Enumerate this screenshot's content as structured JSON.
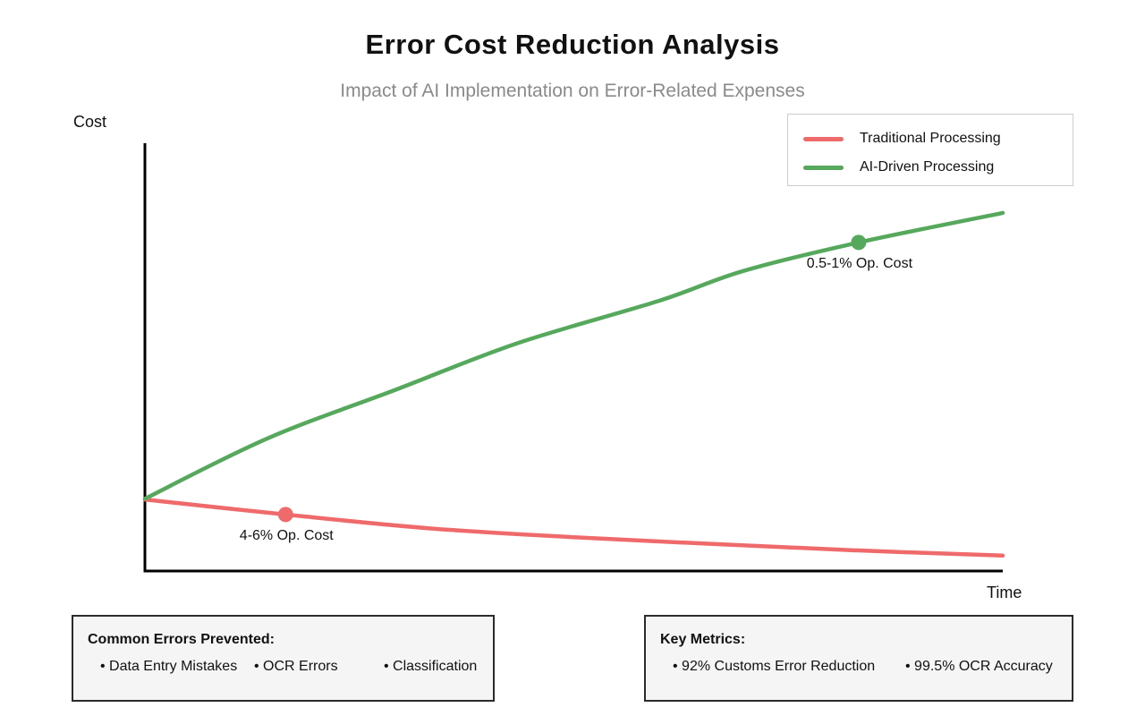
{
  "title": "Error Cost Reduction Analysis",
  "subtitle": "Impact of AI Implementation on Error-Related Expenses",
  "axes": {
    "y_label": "Cost",
    "x_label": "Time"
  },
  "legend": {
    "items": [
      {
        "label": "Traditional Processing",
        "color": "#ef6a6a"
      },
      {
        "label": "AI-Driven Processing",
        "color": "#56a85c"
      }
    ]
  },
  "chart_data": {
    "type": "line",
    "title": "Error Cost Reduction Analysis",
    "subtitle": "Impact of AI Implementation on Error-Related Expenses",
    "xlabel": "Time",
    "ylabel": "Cost",
    "grid": false,
    "axis_ticks": false,
    "legend_position": "top-right",
    "x_range_normalized": [
      0,
      1
    ],
    "y_range_normalized": [
      0,
      1
    ],
    "series": [
      {
        "name": "Traditional Processing",
        "color": "#ef6a6a",
        "points": [
          [
            0,
            0.167
          ],
          [
            0.164,
            0.132
          ],
          [
            0.33,
            0.1
          ],
          [
            0.5,
            0.079
          ],
          [
            0.665,
            0.063
          ],
          [
            0.832,
            0.048
          ],
          [
            1,
            0.036
          ]
        ],
        "marker": {
          "x": 0.164,
          "y": 0.132,
          "label": "4-6% Op. Cost"
        }
      },
      {
        "name": "AI-Driven Processing",
        "color": "#56a85c",
        "points": [
          [
            0,
            0.169
          ],
          [
            0.143,
            0.31
          ],
          [
            0.294,
            0.425
          ],
          [
            0.435,
            0.533
          ],
          [
            0.6,
            0.632
          ],
          [
            0.697,
            0.701
          ],
          [
            0.832,
            0.768
          ],
          [
            1,
            0.837
          ]
        ],
        "marker": {
          "x": 0.832,
          "y": 0.768,
          "label": "0.5-1% Op. Cost"
        }
      }
    ]
  },
  "info_boxes": [
    {
      "title": "Common Errors Prevented:",
      "items": [
        "• Data Entry Mistakes",
        "• OCR Errors",
        "• Classification"
      ]
    },
    {
      "title": "Key Metrics:",
      "items": [
        "• 92% Customs Error Reduction",
        "• 99.5% OCR Accuracy"
      ]
    }
  ],
  "colors": {
    "axis": "#000000",
    "title_text": "#111111",
    "subtitle_text": "#8a8a8a",
    "box_bg": "#f5f5f5",
    "box_border": "#2b2b2b",
    "legend_border": "#cccccc"
  }
}
